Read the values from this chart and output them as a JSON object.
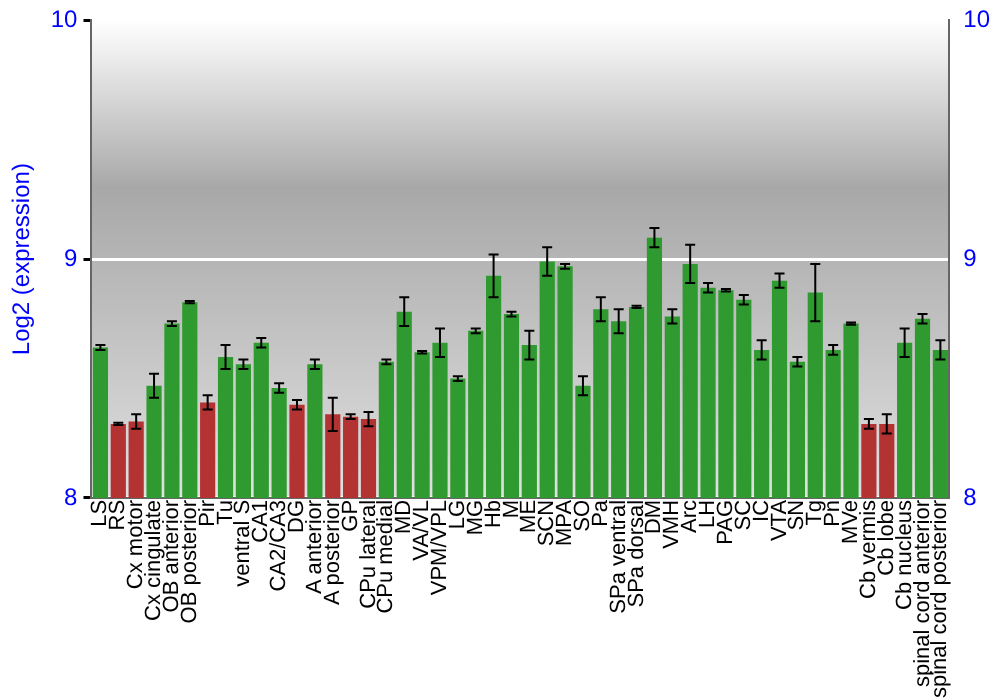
{
  "chart_data": {
    "type": "bar",
    "ylabel": "Log2 (expression)",
    "categories": [
      "LS",
      "RS",
      "Cx motor",
      "Cx cingulate",
      "OB anterior",
      "OB posterior",
      "Pir",
      "Tu",
      "ventral S",
      "CA1",
      "CA2/CA3",
      "DG",
      "A anterior",
      "A posterior",
      "GP",
      "CPu lateral",
      "CPu medial",
      "MD",
      "VA/VL",
      "VPM/VPL",
      "LG",
      "MG",
      "Hb",
      "M",
      "ME",
      "SCN",
      "MPA",
      "SO",
      "Pa",
      "SPa ventral",
      "SPa dorsal",
      "DM",
      "VMH",
      "Arc",
      "LH",
      "PAG",
      "SC",
      "IC",
      "VTA",
      "SN",
      "Tg",
      "Pn",
      "MVe",
      "Cb vermis",
      "Cb lobe",
      "Cb nucleus",
      "spinal cord anterior",
      "spinal cord posterior"
    ],
    "values": [
      8.63,
      8.31,
      8.32,
      8.47,
      8.73,
      8.82,
      8.4,
      8.59,
      8.56,
      8.65,
      8.46,
      8.39,
      8.56,
      8.35,
      8.34,
      8.33,
      8.57,
      8.78,
      8.61,
      8.65,
      8.5,
      8.7,
      8.93,
      8.77,
      8.64,
      8.99,
      8.97,
      8.47,
      8.79,
      8.74,
      8.8,
      9.09,
      8.76,
      8.98,
      8.88,
      8.87,
      8.83,
      8.62,
      8.91,
      8.57,
      8.86,
      8.62,
      8.73,
      8.31,
      8.31,
      8.65,
      8.75,
      8.62
    ],
    "errors": [
      0.01,
      0.005,
      0.03,
      0.05,
      0.01,
      0.005,
      0.03,
      0.05,
      0.02,
      0.02,
      0.02,
      0.02,
      0.02,
      0.07,
      0.01,
      0.03,
      0.01,
      0.06,
      0.005,
      0.06,
      0.01,
      0.01,
      0.09,
      0.01,
      0.06,
      0.06,
      0.01,
      0.04,
      0.05,
      0.05,
      0.005,
      0.04,
      0.03,
      0.08,
      0.02,
      0.005,
      0.02,
      0.04,
      0.03,
      0.02,
      0.12,
      0.02,
      0.005,
      0.02,
      0.04,
      0.06,
      0.02,
      0.04
    ],
    "colors": [
      "#2f9a2f",
      "#b33333",
      "#b33333",
      "#2f9a2f",
      "#2f9a2f",
      "#2f9a2f",
      "#b33333",
      "#2f9a2f",
      "#2f9a2f",
      "#2f9a2f",
      "#2f9a2f",
      "#b33333",
      "#2f9a2f",
      "#b33333",
      "#b33333",
      "#b33333",
      "#2f9a2f",
      "#2f9a2f",
      "#2f9a2f",
      "#2f9a2f",
      "#2f9a2f",
      "#2f9a2f",
      "#2f9a2f",
      "#2f9a2f",
      "#2f9a2f",
      "#2f9a2f",
      "#2f9a2f",
      "#2f9a2f",
      "#2f9a2f",
      "#2f9a2f",
      "#2f9a2f",
      "#2f9a2f",
      "#2f9a2f",
      "#2f9a2f",
      "#2f9a2f",
      "#2f9a2f",
      "#2f9a2f",
      "#2f9a2f",
      "#2f9a2f",
      "#2f9a2f",
      "#2f9a2f",
      "#2f9a2f",
      "#2f9a2f",
      "#b33333",
      "#b33333",
      "#2f9a2f",
      "#2f9a2f",
      "#2f9a2f"
    ],
    "ylim": [
      8,
      10
    ],
    "yticks": [
      8,
      9,
      10
    ],
    "y2lim": [
      8,
      10
    ],
    "y2ticks": [
      8,
      9,
      10
    ],
    "grid": "y",
    "legend": false
  }
}
